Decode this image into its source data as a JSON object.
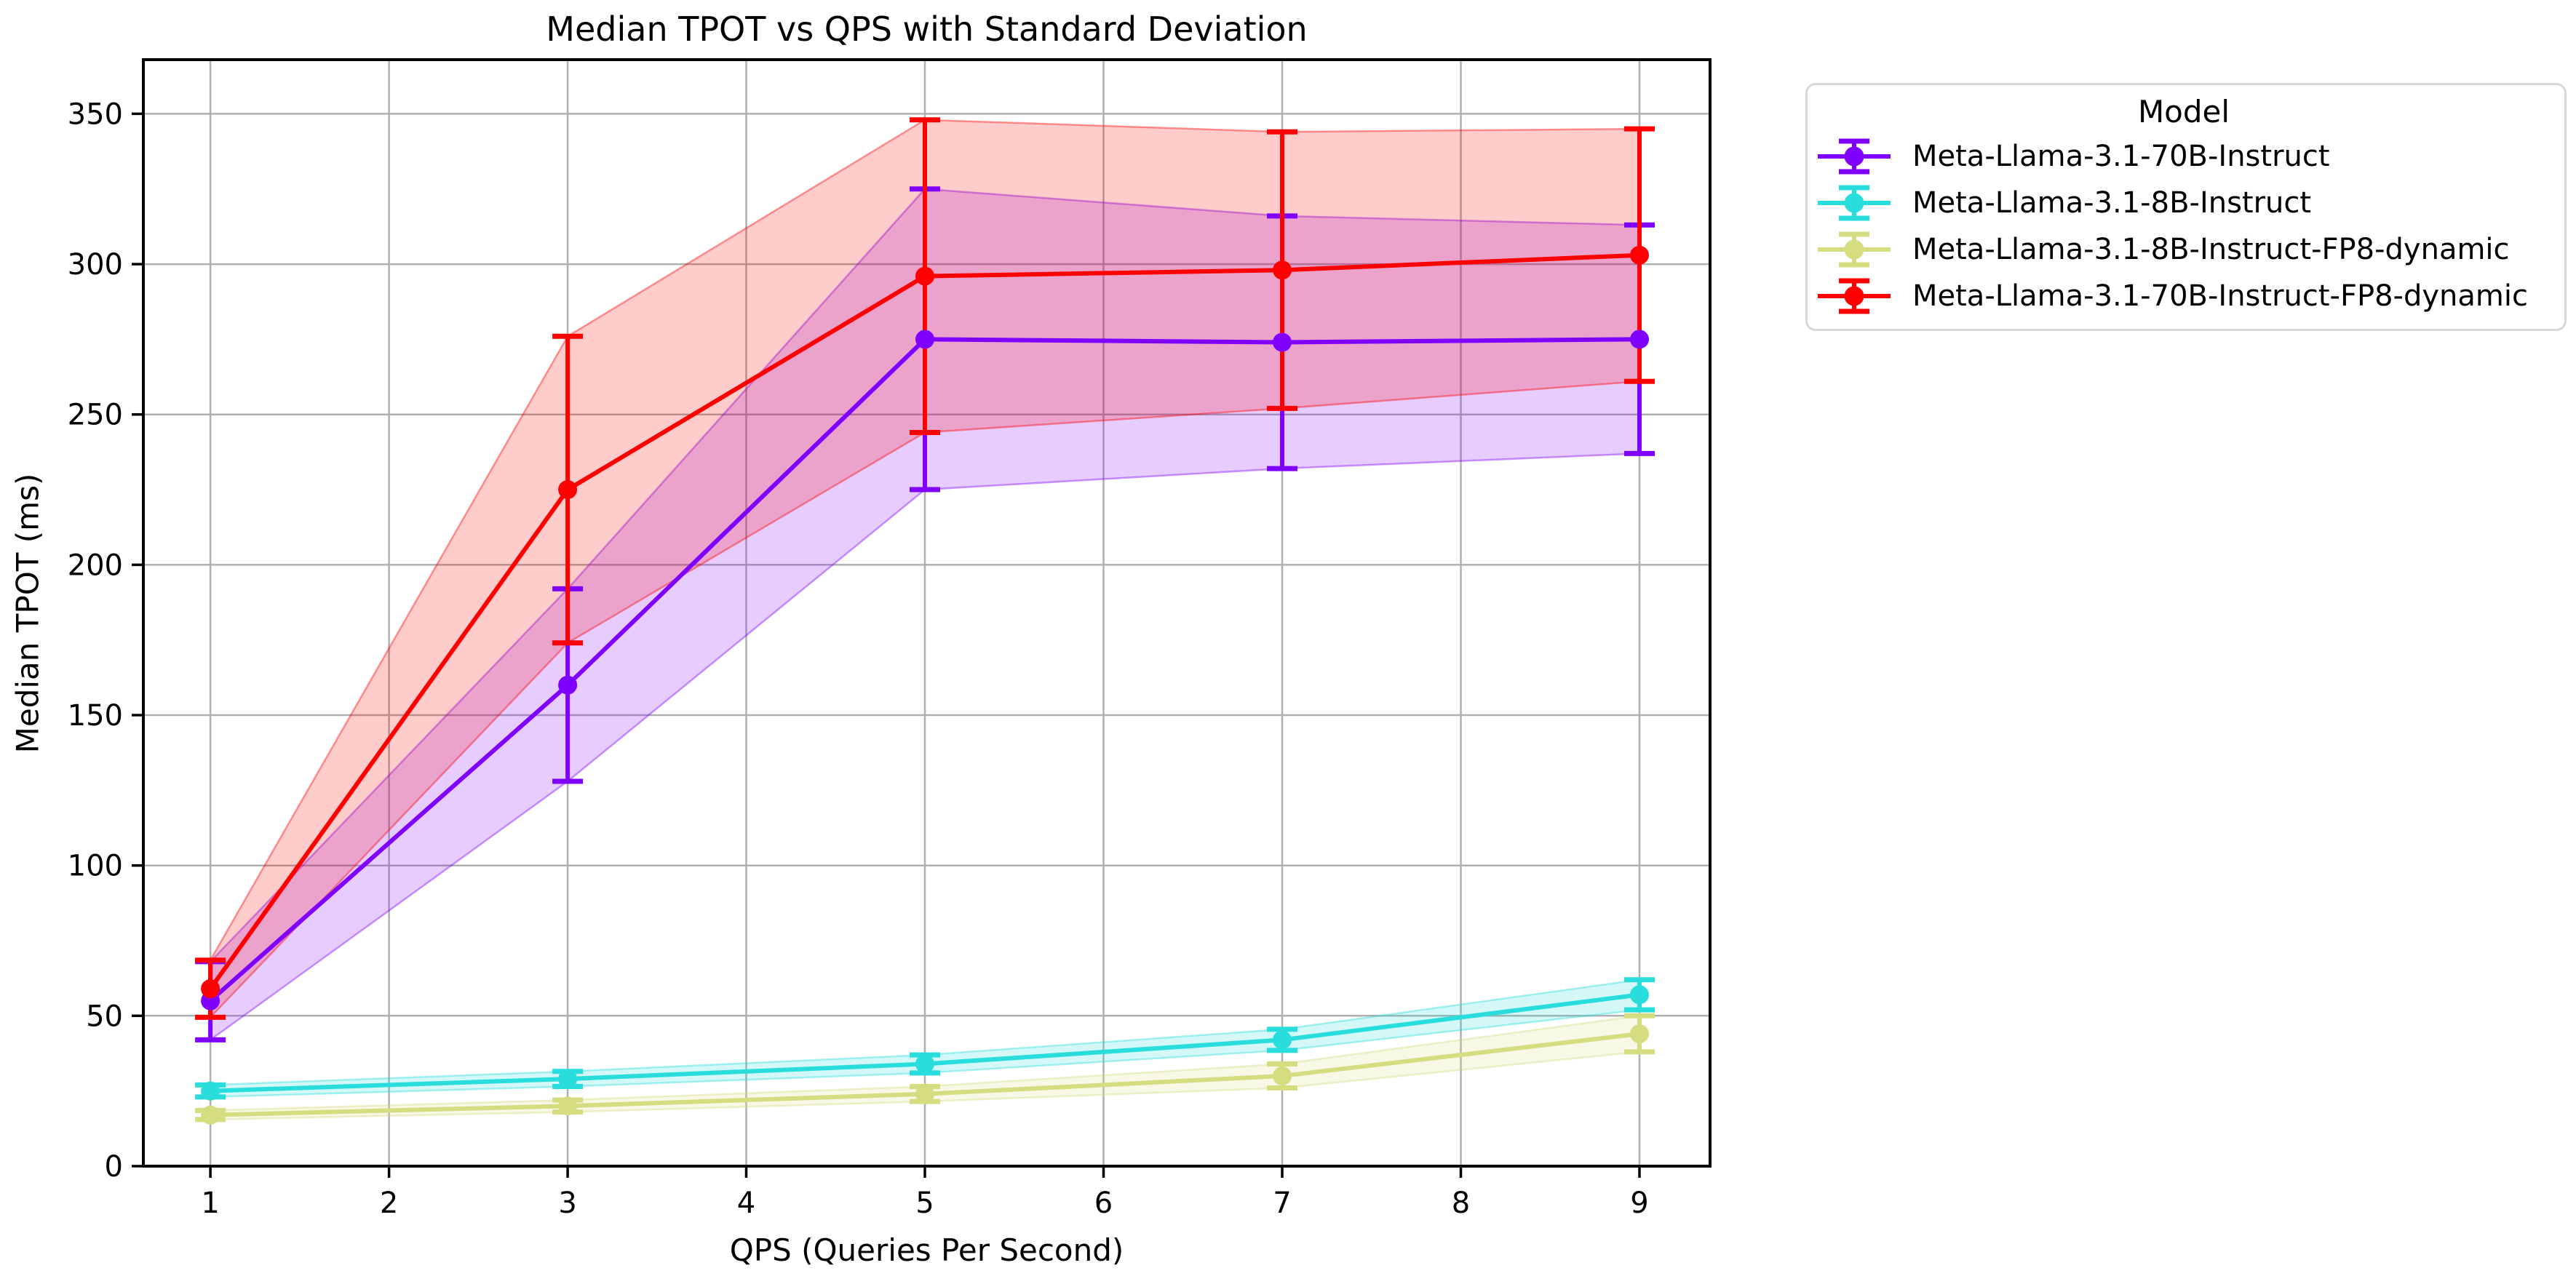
{
  "figure": {
    "title": "Median TPOT vs QPS with Standard Deviation",
    "xlabel": "QPS (Queries Per Second)",
    "ylabel": "Median TPOT (ms)",
    "legend_title": "Model"
  },
  "chart_data": {
    "type": "line",
    "title": "Median TPOT vs QPS with Standard Deviation",
    "xlabel": "QPS (Queries Per Second)",
    "ylabel": "Median TPOT (ms)",
    "legend_title": "Model",
    "legend_position": "outside-upper-right",
    "grid": true,
    "grid_color": "#b0b0b0",
    "band_alpha": 0.2,
    "error_style": "errorbar-with-caps-and-std-band",
    "x": [
      1,
      3,
      5,
      7,
      9
    ],
    "x_ticks": [
      1,
      2,
      3,
      4,
      5,
      6,
      7,
      8,
      9
    ],
    "y_ticks": [
      0,
      50,
      100,
      150,
      200,
      250,
      300,
      350
    ],
    "xlim": [
      0.625,
      9.395
    ],
    "ylim": [
      0,
      368
    ],
    "series": [
      {
        "name": "Meta-Llama-3.1-70B-Instruct",
        "color": "#8000FF",
        "median_tpot_ms": [
          55,
          160,
          275,
          274,
          275
        ],
        "std_ms": [
          13,
          32,
          50,
          42,
          38
        ]
      },
      {
        "name": "Meta-Llama-3.1-8B-Instruct",
        "color": "#2ADDDD",
        "median_tpot_ms": [
          25,
          29,
          34,
          42,
          57
        ],
        "std_ms": [
          2,
          2.5,
          3,
          3.5,
          5
        ]
      },
      {
        "name": "Meta-Llama-3.1-8B-Instruct-FP8-dynamic",
        "color": "#D5DD80",
        "median_tpot_ms": [
          17,
          20,
          24,
          30,
          44
        ],
        "std_ms": [
          1.5,
          2,
          2.5,
          4,
          6
        ]
      },
      {
        "name": "Meta-Llama-3.1-70B-Instruct-FP8-dynamic",
        "color": "#FF0000",
        "median_tpot_ms": [
          59,
          225,
          296,
          298,
          303
        ],
        "std_ms": [
          9.5,
          51,
          52,
          46,
          42
        ]
      }
    ]
  }
}
